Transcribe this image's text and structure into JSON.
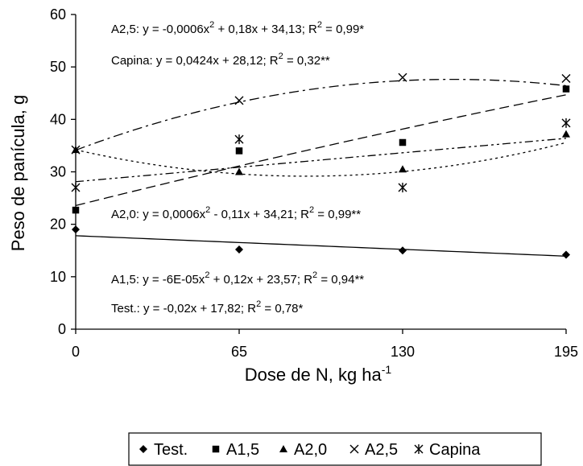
{
  "chart_data": {
    "type": "scatter",
    "xlabel": "Dose de N, kg ha",
    "xlabel_sup": "-1",
    "ylabel": "Peso de panícula, g",
    "x": [
      0,
      65,
      130,
      195
    ],
    "xticks": [
      "0",
      "65",
      "130",
      "195"
    ],
    "yticks": [
      "0",
      "10",
      "20",
      "30",
      "40",
      "50",
      "60"
    ],
    "xlim": [
      0,
      195
    ],
    "ylim": [
      0,
      60
    ],
    "grid": false,
    "legend_position": "bottom",
    "series": [
      {
        "name": "Test.",
        "marker": "diamond",
        "values": [
          19.0,
          15.2,
          15.0,
          14.2
        ],
        "fit": {
          "a": 0,
          "b": -0.02,
          "c": 17.82,
          "style": "solid"
        }
      },
      {
        "name": "A1,5",
        "marker": "square",
        "values": [
          22.7,
          34.0,
          35.6,
          45.8
        ],
        "fit": {
          "a": -6e-05,
          "b": 0.12,
          "c": 23.57,
          "style": "dash"
        }
      },
      {
        "name": "A2,0",
        "marker": "triangle",
        "values": [
          34.2,
          30.0,
          30.5,
          37.2
        ],
        "fit": {
          "a": 0.0006,
          "b": -0.11,
          "c": 34.21,
          "style": "dot"
        }
      },
      {
        "name": "A2,5",
        "marker": "x",
        "values": [
          34.2,
          43.6,
          48.0,
          47.8
        ],
        "fit": {
          "a": -0.0006,
          "b": 0.18,
          "c": 34.13,
          "style": "dashdot"
        }
      },
      {
        "name": "Capina",
        "marker": "asterisk",
        "values": [
          27.0,
          36.2,
          27.0,
          39.3
        ],
        "fit": {
          "a": 0,
          "b": 0.0424,
          "c": 28.12,
          "style": "dashdotdot"
        }
      }
    ],
    "annotations": [
      {
        "pre": "A2,5: y = -0,0006x",
        "mid": " + 0,18x + 34,13; R",
        "post": " = 0,99*"
      },
      {
        "pre": "Capina: y = 0,0424x + 28,12; R",
        "mid": "",
        "post": " = 0,32**"
      },
      {
        "pre": "A2,0: y = 0,0006x",
        "mid": " - 0,11x + 34,21; R",
        "post": " = 0,99**"
      },
      {
        "pre": "A1,5: y = -6E-05x",
        "mid": " + 0,12x + 23,57; R",
        "post": " = 0,94**"
      },
      {
        "pre": "Test.: y = -0,02x + 17,82; R",
        "mid": "",
        "post": " = 0,78*"
      }
    ]
  }
}
